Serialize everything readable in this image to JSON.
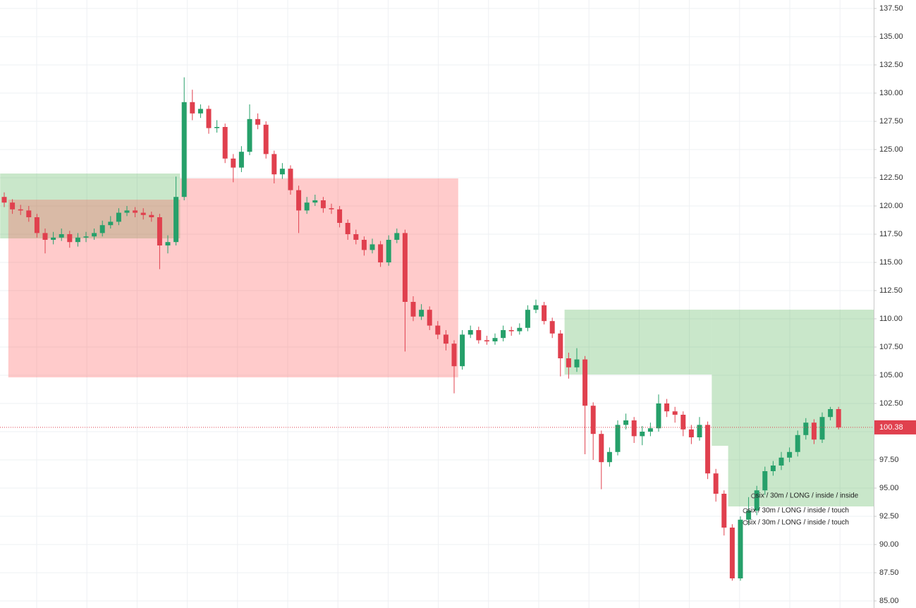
{
  "chart_data": {
    "type": "candlestick",
    "up_color": "#26a06a",
    "down_color": "#e0404e",
    "grid": true,
    "ylim": [
      84.375,
      138.25
    ],
    "yticks": [
      {
        "value": 85,
        "label": "85.00"
      },
      {
        "value": 87.5,
        "label": "87.50"
      },
      {
        "value": 90,
        "label": "90.00"
      },
      {
        "value": 92.5,
        "label": "92.50"
      },
      {
        "value": 95,
        "label": "95.00"
      },
      {
        "value": 97.5,
        "label": "97.50"
      },
      {
        "value": 100,
        "label": "100.00"
      },
      {
        "value": 102.5,
        "label": "102.50"
      },
      {
        "value": 105,
        "label": "105.00"
      },
      {
        "value": 107.5,
        "label": "107.50"
      },
      {
        "value": 110,
        "label": "110.00"
      },
      {
        "value": 112.5,
        "label": "112.50"
      },
      {
        "value": 115,
        "label": "115.00"
      },
      {
        "value": 117.5,
        "label": "117.50"
      },
      {
        "value": 120,
        "label": "120.00"
      },
      {
        "value": 122.5,
        "label": "122.50"
      },
      {
        "value": 125,
        "label": "125.00"
      },
      {
        "value": 127.5,
        "label": "127.50"
      },
      {
        "value": 130,
        "label": "130.00"
      },
      {
        "value": 132.5,
        "label": "132.50"
      },
      {
        "value": 135,
        "label": "135.00"
      },
      {
        "value": 137.5,
        "label": "137.50"
      }
    ],
    "open": [
      120.8,
      120.3,
      119.7,
      119.6,
      119.0,
      117.6,
      117.0,
      117.2,
      117.5,
      116.8,
      117.2,
      117.3,
      117.6,
      118.3,
      118.6,
      119.4,
      119.6,
      119.4,
      119.2,
      119.0,
      116.5,
      116.8,
      120.8,
      129.2,
      128.2,
      128.6,
      126.9,
      127.0,
      124.2,
      123.4,
      124.8,
      127.7,
      127.2,
      124.6,
      122.8,
      123.3,
      121.4,
      119.6,
      120.3,
      120.5,
      119.8,
      119.7,
      118.5,
      117.5,
      117.0,
      116.1,
      116.6,
      115.0,
      117.0,
      117.6,
      111.5,
      110.2,
      110.8,
      109.4,
      108.6,
      107.8,
      105.8,
      108.6,
      109.0,
      108.1,
      108.0,
      108.3,
      109.0,
      108.9,
      109.2,
      110.8,
      111.2,
      109.8,
      108.7,
      106.5,
      105.7,
      106.4,
      102.3,
      99.8,
      97.3,
      98.2,
      100.6,
      101.0,
      99.6,
      100.0,
      100.3,
      102.5,
      101.8,
      101.5,
      100.2,
      99.5,
      100.6,
      96.3,
      94.5,
      91.5,
      87.0,
      92.2,
      93.0,
      94.8,
      96.5,
      97.0,
      97.7,
      98.2,
      99.7,
      100.8,
      99.3,
      101.3,
      102.0
    ],
    "high": [
      121.2,
      120.6,
      120.1,
      120.0,
      119.3,
      118.0,
      117.7,
      118.0,
      117.8,
      117.6,
      117.7,
      118.0,
      118.7,
      119.1,
      119.8,
      120.0,
      119.9,
      119.8,
      119.5,
      119.3,
      117.4,
      122.6,
      131.4,
      130.3,
      129.0,
      128.9,
      127.6,
      127.3,
      124.6,
      125.3,
      129.0,
      128.2,
      127.5,
      124.9,
      123.8,
      123.6,
      121.8,
      120.8,
      121.0,
      120.8,
      120.2,
      120.0,
      118.8,
      117.9,
      117.3,
      117.1,
      116.9,
      117.4,
      118.0,
      117.9,
      112.0,
      111.3,
      111.1,
      109.8,
      109.0,
      108.1,
      109.0,
      109.4,
      109.3,
      108.5,
      108.7,
      109.4,
      109.3,
      109.6,
      111.2,
      111.7,
      111.5,
      110.1,
      109.0,
      107.0,
      107.4,
      106.7,
      102.6,
      100.1,
      98.6,
      101.0,
      101.6,
      101.3,
      100.5,
      100.8,
      103.3,
      102.9,
      102.2,
      101.8,
      100.6,
      101.3,
      100.9,
      96.7,
      94.8,
      91.8,
      92.5,
      94.2,
      95.2,
      96.9,
      97.4,
      98.2,
      98.6,
      100.1,
      101.2,
      101.1,
      101.7,
      102.2,
      102.2
    ],
    "low": [
      119.9,
      119.3,
      119.2,
      118.6,
      117.2,
      115.8,
      116.6,
      116.9,
      116.3,
      116.4,
      116.8,
      117.0,
      117.3,
      118.0,
      118.3,
      119.1,
      119.0,
      118.8,
      118.6,
      114.4,
      115.8,
      116.5,
      120.5,
      127.6,
      127.8,
      126.4,
      126.5,
      123.8,
      122.1,
      123.0,
      124.5,
      126.8,
      124.2,
      122.0,
      122.4,
      121.0,
      117.6,
      119.3,
      120.0,
      119.4,
      119.3,
      118.1,
      117.0,
      116.6,
      115.6,
      115.8,
      114.6,
      114.7,
      116.7,
      107.1,
      109.8,
      109.9,
      109.0,
      108.2,
      107.2,
      103.4,
      105.5,
      108.3,
      107.8,
      107.7,
      107.7,
      108.0,
      108.5,
      108.6,
      108.9,
      110.5,
      109.5,
      108.3,
      104.9,
      104.7,
      105.3,
      98.0,
      97.5,
      94.9,
      96.9,
      97.9,
      100.2,
      99.0,
      98.8,
      99.6,
      100.0,
      101.3,
      100.8,
      99.6,
      98.9,
      99.2,
      95.8,
      93.8,
      90.8,
      86.8,
      86.8,
      91.7,
      92.6,
      94.4,
      96.1,
      96.6,
      97.3,
      97.8,
      99.3,
      98.9,
      99.0,
      101.0,
      100.2
    ],
    "close": [
      120.3,
      119.7,
      119.6,
      119.0,
      117.6,
      117.0,
      117.2,
      117.5,
      116.8,
      117.2,
      117.3,
      117.6,
      118.3,
      118.6,
      119.4,
      119.6,
      119.4,
      119.2,
      119.0,
      116.5,
      116.8,
      120.8,
      129.2,
      128.2,
      128.6,
      126.9,
      127.0,
      124.2,
      123.4,
      124.8,
      127.7,
      127.2,
      124.6,
      122.8,
      123.3,
      121.4,
      119.6,
      120.3,
      120.5,
      119.8,
      119.7,
      118.5,
      117.5,
      117.0,
      116.1,
      116.6,
      115.0,
      117.0,
      117.6,
      111.5,
      110.2,
      110.8,
      109.4,
      108.6,
      107.8,
      105.8,
      108.6,
      109.0,
      108.1,
      108.0,
      108.3,
      109.0,
      108.9,
      109.2,
      110.8,
      111.2,
      109.8,
      108.7,
      106.5,
      105.7,
      106.4,
      102.3,
      99.8,
      97.3,
      98.2,
      100.6,
      101.0,
      99.6,
      100.0,
      100.3,
      102.5,
      101.8,
      101.5,
      100.2,
      99.5,
      100.6,
      96.3,
      94.5,
      91.5,
      87.0,
      92.2,
      93.0,
      94.8,
      96.5,
      97.0,
      97.7,
      98.2,
      99.7,
      100.8,
      99.3,
      101.3,
      102.0,
      100.38
    ],
    "zones": [
      {
        "color": "#4caf50",
        "steps": [
          {
            "from": 0,
            "to": 21,
            "top": 122.875,
            "bottom": 117.125
          }
        ]
      },
      {
        "color": "#ff5252",
        "steps": [
          {
            "from": 1,
            "to": 21,
            "top": 120.56,
            "bottom": 104.81
          },
          {
            "from": 22,
            "to": 55,
            "top": 122.44,
            "bottom": 104.81
          }
        ]
      },
      {
        "color": "#4caf50",
        "steps": [
          {
            "from": 69,
            "to": 86,
            "top": 110.81,
            "bottom": 105.06
          },
          {
            "from": 87,
            "to": 88,
            "top": 110.81,
            "bottom": 98.75
          },
          {
            "from": 89,
            "to": 102,
            "top": 110.81,
            "bottom": 93.375
          }
        ]
      }
    ],
    "last_price": 100.38,
    "annotations": [
      {
        "text": "six / 30m / LONG / inside / inside",
        "candle": 91,
        "price": 94.31
      },
      {
        "text": "six / 30m / LONG / inside / touch",
        "candle": 90,
        "price": 93.0
      },
      {
        "text": "six / 30m / LONG / inside / touch",
        "candle": 90,
        "price": 91.94
      }
    ]
  }
}
